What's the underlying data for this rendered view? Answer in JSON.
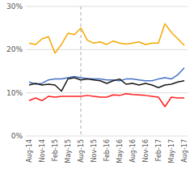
{
  "chart_data": {
    "type": "line",
    "categories": [
      "Aug-14",
      null,
      "Nov-14",
      null,
      "Feb-15",
      null,
      "May-15",
      null,
      "Aug-15",
      null,
      "Nov-15",
      null,
      "Feb-16",
      null,
      "May-16",
      null,
      "Aug-16",
      null,
      "Nov-16",
      null,
      "Feb-17",
      null,
      "May-17",
      null,
      "Aug-17"
    ],
    "series": [
      {
        "color": "#F5A800",
        "values": [
          0.215,
          0.212,
          0.225,
          0.23,
          0.192,
          0.212,
          0.238,
          0.235,
          0.25,
          0.222,
          0.215,
          0.218,
          0.212,
          0.22,
          0.215,
          0.213,
          0.215,
          0.218,
          0.212,
          0.215,
          0.215,
          0.26,
          0.24,
          0.225,
          0.21
        ]
      },
      {
        "color": "#4472C4",
        "values": [
          0.125,
          0.12,
          0.122,
          0.13,
          0.132,
          0.132,
          0.135,
          0.138,
          0.135,
          0.133,
          0.132,
          0.132,
          0.13,
          0.13,
          0.128,
          0.132,
          0.132,
          0.13,
          0.128,
          0.128,
          0.132,
          0.135,
          0.132,
          0.142,
          0.158
        ]
      },
      {
        "color": "#1A1A1A",
        "values": [
          0.118,
          0.122,
          0.118,
          0.12,
          0.118,
          0.104,
          0.132,
          0.135,
          0.13,
          0.132,
          0.13,
          0.128,
          0.122,
          0.128,
          0.132,
          0.12,
          0.122,
          0.118,
          0.122,
          0.118,
          0.112,
          0.118,
          0.12,
          0.125,
          0.128
        ]
      },
      {
        "color": "#FF2020",
        "values": [
          0.082,
          0.088,
          0.082,
          0.092,
          0.09,
          0.092,
          0.092,
          0.092,
          0.092,
          0.094,
          0.092,
          0.09,
          0.09,
          0.095,
          0.094,
          0.098,
          0.096,
          0.095,
          0.094,
          0.092,
          0.09,
          0.068,
          0.09,
          0.088,
          0.088
        ]
      }
    ],
    "vline": {
      "x": "Aug-15",
      "line_style": "dashed",
      "color": "#AAAAAA"
    },
    "ylim": [
      0,
      0.3
    ],
    "yticks": [
      {
        "value": 0.0,
        "label": "0%"
      },
      {
        "value": 0.1,
        "label": "10%"
      },
      {
        "value": 0.2,
        "label": "20%"
      },
      {
        "value": 0.3,
        "label": "30%"
      }
    ],
    "grid": true
  }
}
